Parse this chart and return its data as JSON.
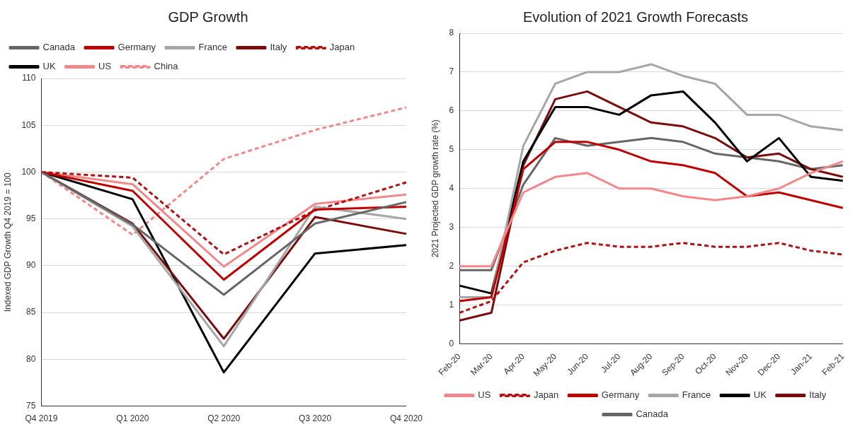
{
  "chart_data": [
    {
      "type": "line",
      "title": "GDP Growth",
      "ylabel": "Indexed GDP Growth Q4 2019 = 100",
      "categories": [
        "Q4 2019",
        "Q1 2020",
        "Q2 2020",
        "Q3 2020",
        "Q4 2020"
      ],
      "ylim": [
        75,
        110
      ],
      "yticks": [
        75,
        80,
        85,
        90,
        95,
        100,
        105,
        110
      ],
      "grid": "y",
      "legend": "top left",
      "marker": "none",
      "series": [
        {
          "name": "Canada",
          "color": "#666666",
          "line_style": "solid",
          "values": [
            100,
            94.4,
            86.9,
            94.5,
            96.8
          ]
        },
        {
          "name": "Germany",
          "color": "#c00000",
          "line_style": "solid",
          "values": [
            100,
            98.0,
            88.5,
            96.0,
            96.3
          ]
        },
        {
          "name": "France",
          "color": "#a6a6a6",
          "line_style": "solid",
          "values": [
            100,
            94.2,
            81.4,
            96.3,
            95.0
          ]
        },
        {
          "name": "Italy",
          "color": "#7b0c0c",
          "line_style": "solid",
          "values": [
            100,
            94.5,
            82.2,
            95.2,
            93.4
          ]
        },
        {
          "name": "Japan",
          "color": "#b01010",
          "line_style": "dashed",
          "values": [
            100,
            99.4,
            91.2,
            95.9,
            98.9
          ]
        },
        {
          "name": "UK",
          "color": "#000000",
          "line_style": "solid",
          "values": [
            100,
            97.1,
            78.6,
            91.3,
            92.2
          ]
        },
        {
          "name": "US",
          "color": "#f4878a",
          "line_style": "solid",
          "values": [
            100,
            98.7,
            89.9,
            96.6,
            97.6
          ]
        },
        {
          "name": "China",
          "color": "#f4878a",
          "line_style": "dashed",
          "values": [
            100,
            93.3,
            101.4,
            104.5,
            106.9
          ]
        }
      ]
    },
    {
      "type": "line",
      "title": "Evolution of 2021 Growth Forecasts",
      "ylabel": "2021 Projected GDP growth rate (%)",
      "categories": [
        "Feb-20",
        "Mar-20",
        "Apr-20",
        "May-20",
        "Jun-20",
        "Jul-20",
        "Aug-20",
        "Sep-20",
        "Oct-20",
        "Nov-20",
        "Dec-20",
        "Jan-21",
        "Feb-21"
      ],
      "ylim": [
        0,
        8
      ],
      "yticks": [
        0,
        1,
        2,
        3,
        4,
        5,
        6,
        7,
        8
      ],
      "grid": "y",
      "legend": "bottom",
      "marker": "none",
      "series": [
        {
          "name": "US",
          "color": "#f4878a",
          "line_style": "solid",
          "values": [
            2.0,
            2.0,
            3.9,
            4.3,
            4.4,
            4.0,
            4.0,
            3.8,
            3.7,
            3.8,
            4.0,
            4.4,
            4.7
          ]
        },
        {
          "name": "Japan",
          "color": "#b01010",
          "line_style": "dashed",
          "values": [
            0.8,
            1.1,
            2.1,
            2.4,
            2.6,
            2.5,
            2.5,
            2.6,
            2.5,
            2.5,
            2.6,
            2.4,
            2.3
          ]
        },
        {
          "name": "Germany",
          "color": "#c00000",
          "line_style": "solid",
          "values": [
            1.1,
            1.2,
            4.5,
            5.2,
            5.2,
            5.0,
            4.7,
            4.6,
            4.4,
            3.8,
            3.9,
            3.7,
            3.5
          ]
        },
        {
          "name": "France",
          "color": "#a6a6a6",
          "line_style": "solid",
          "values": [
            1.2,
            1.2,
            5.1,
            6.7,
            7.0,
            7.0,
            7.2,
            6.9,
            6.7,
            5.9,
            5.9,
            5.6,
            5.5
          ]
        },
        {
          "name": "UK",
          "color": "#000000",
          "line_style": "solid",
          "values": [
            1.5,
            1.3,
            4.7,
            6.1,
            6.1,
            5.9,
            6.4,
            6.5,
            5.7,
            4.7,
            5.3,
            4.3,
            4.2
          ]
        },
        {
          "name": "Italy",
          "color": "#7b0c0c",
          "line_style": "solid",
          "values": [
            0.6,
            0.8,
            4.6,
            6.3,
            6.5,
            6.1,
            5.7,
            5.6,
            5.3,
            4.8,
            4.9,
            4.5,
            4.3
          ]
        },
        {
          "name": "Canada",
          "color": "#666666",
          "line_style": "solid",
          "values": [
            1.9,
            1.9,
            4.1,
            5.3,
            5.1,
            5.2,
            5.3,
            5.2,
            4.9,
            4.8,
            4.7,
            4.5,
            4.6
          ]
        }
      ]
    }
  ]
}
